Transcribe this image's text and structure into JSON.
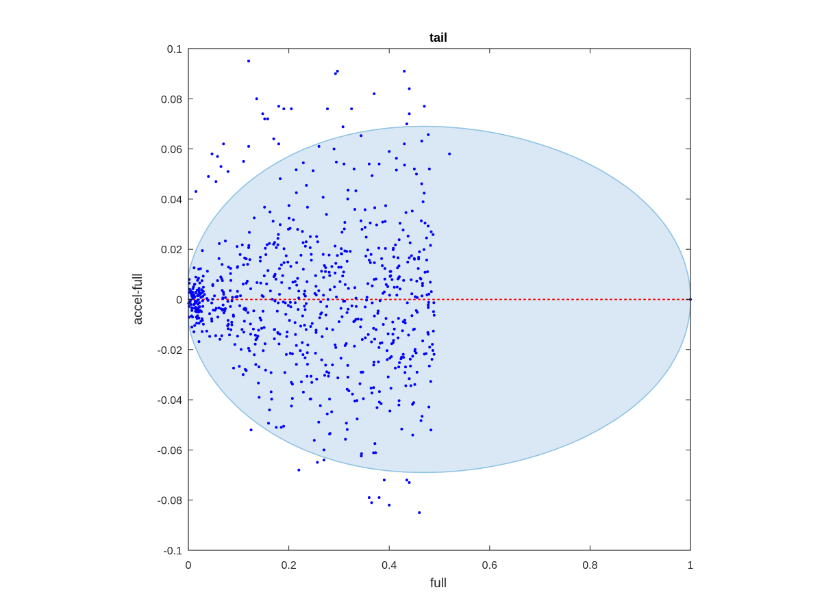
{
  "chart_data": {
    "type": "scatter",
    "title": "tail",
    "xlabel": "full",
    "ylabel": "accel-full",
    "xlim": [
      0,
      1
    ],
    "ylim": [
      -0.1,
      0.1
    ],
    "xticks": [
      0,
      0.2,
      0.4,
      0.6,
      0.8,
      1
    ],
    "xtick_labels": [
      "0",
      "0.2",
      "0.4",
      "0.6",
      "0.8",
      "1"
    ],
    "yticks": [
      -0.1,
      -0.08,
      -0.06,
      -0.04,
      -0.02,
      0,
      0.02,
      0.04,
      0.06,
      0.08,
      0.1
    ],
    "ytick_labels": [
      "-0.1",
      "-0.08",
      "-0.06",
      "-0.04",
      "-0.02",
      "0",
      "0.02",
      "0.04",
      "0.06",
      "0.08",
      "0.1"
    ],
    "grid": false,
    "ellipse": {
      "fill_color": "#d9e8f4",
      "edge_color": "#8ec3e3",
      "left_x": -0.005,
      "right_x": 1.0,
      "half_height": 0.069,
      "peak_x": 0.44,
      "right_edge_y": [
        -0.018,
        0.018
      ]
    },
    "reference_line": {
      "y": 0,
      "color": "#ff0000",
      "style": "dotted"
    },
    "series": [
      {
        "marker_color": "#0000ff",
        "points": [
          [
            0.12,
            0.095
          ],
          [
            0.293,
            0.09
          ],
          [
            0.297,
            0.091
          ],
          [
            0.43,
            0.091
          ],
          [
            0.44,
            0.084
          ],
          [
            0.37,
            0.082
          ],
          [
            0.136,
            0.08
          ],
          [
            0.18,
            0.077
          ],
          [
            0.19,
            0.076
          ],
          [
            0.205,
            0.076
          ],
          [
            0.277,
            0.076
          ],
          [
            0.325,
            0.076
          ],
          [
            0.47,
            0.077
          ],
          [
            0.148,
            0.074
          ],
          [
            0.152,
            0.072
          ],
          [
            0.158,
            0.072
          ],
          [
            0.44,
            0.074
          ],
          [
            0.435,
            0.07
          ],
          [
            0.17,
            0.064
          ],
          [
            0.18,
            0.062
          ],
          [
            0.07,
            0.062
          ],
          [
            0.12,
            0.061
          ],
          [
            0.047,
            0.058
          ],
          [
            0.058,
            0.057
          ],
          [
            0.11,
            0.055
          ],
          [
            0.26,
            0.061
          ],
          [
            0.29,
            0.06
          ],
          [
            0.43,
            0.062
          ],
          [
            0.4,
            0.059
          ],
          [
            0.065,
            0.053
          ],
          [
            0.079,
            0.051
          ],
          [
            0.52,
            0.058
          ],
          [
            0.04,
            0.049
          ],
          [
            0.055,
            0.047
          ],
          [
            0.015,
            0.043
          ],
          [
            0.31,
            0.054
          ],
          [
            0.36,
            0.054
          ],
          [
            0.38,
            0.054
          ],
          [
            0.33,
            0.052
          ],
          [
            0.45,
            0.052
          ],
          [
            0.48,
            0.052
          ]
        ]
      }
    ]
  }
}
